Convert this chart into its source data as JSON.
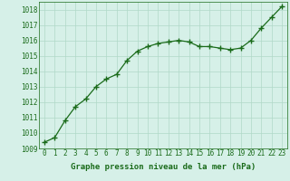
{
  "x": [
    0,
    1,
    2,
    3,
    4,
    5,
    6,
    7,
    8,
    9,
    10,
    11,
    12,
    13,
    14,
    15,
    16,
    17,
    18,
    19,
    20,
    21,
    22,
    23
  ],
  "y": [
    1009.4,
    1009.7,
    1010.8,
    1011.7,
    1012.2,
    1013.0,
    1013.5,
    1013.8,
    1014.7,
    1015.3,
    1015.6,
    1015.8,
    1015.9,
    1016.0,
    1015.9,
    1015.6,
    1015.6,
    1015.5,
    1015.4,
    1015.5,
    1016.0,
    1016.8,
    1017.5,
    1018.2
  ],
  "ylim": [
    1009,
    1018.5
  ],
  "yticks": [
    1009,
    1010,
    1011,
    1012,
    1013,
    1014,
    1015,
    1016,
    1017,
    1018
  ],
  "xlim_min": -0.5,
  "xlim_max": 23.5,
  "xticks": [
    0,
    1,
    2,
    3,
    4,
    5,
    6,
    7,
    8,
    9,
    10,
    11,
    12,
    13,
    14,
    15,
    16,
    17,
    18,
    19,
    20,
    21,
    22,
    23
  ],
  "xlabel": "Graphe pression niveau de la mer (hPa)",
  "line_color": "#1a6b1a",
  "marker": "+",
  "marker_size": 4,
  "marker_lw": 1.0,
  "line_width": 0.9,
  "background_color": "#d6f0e8",
  "grid_color": "#b0d8c8",
  "tick_fontsize": 5.5,
  "label_fontsize": 6.5,
  "figwidth": 3.2,
  "figheight": 2.0,
  "dpi": 100
}
